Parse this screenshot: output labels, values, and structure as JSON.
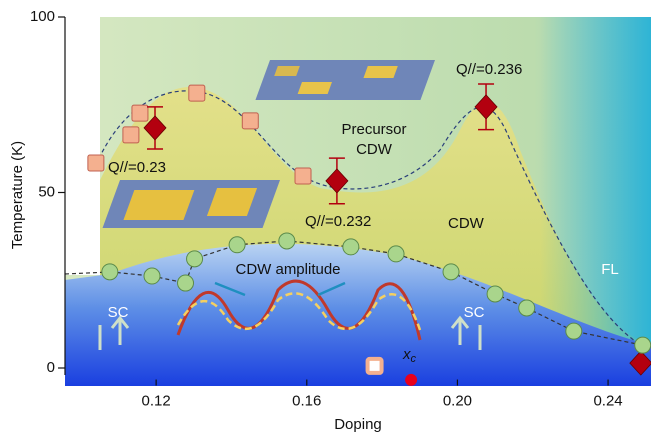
{
  "chart_data": {
    "type": "scatter",
    "x_label": "Doping",
    "y_label": "Temperature (K)",
    "xlim": [
      0.0958,
      0.2514
    ],
    "ylim": [
      -5,
      100
    ],
    "xticks": [
      0.12,
      0.16,
      {
        "value": 0.2,
        "label": "0.20"
      },
      0.24
    ],
    "yticks": [
      0,
      50,
      100
    ],
    "series": [
      {
        "marker": "square",
        "color": "#f4b08f",
        "x": [
          0.104,
          0.1133,
          0.1157,
          0.1308,
          0.145,
          0.159
        ],
        "values": [
          58.4,
          66.4,
          72.6,
          78.3,
          70.4,
          54.7
        ]
      },
      {
        "marker": "diamond",
        "color": "#b3000f",
        "x": [
          0.1197,
          0.168,
          0.2076,
          0.2487
        ],
        "values": [
          68.4,
          53.3,
          74.4,
          1.4
        ],
        "errors": [
          6,
          6.5,
          6.5,
          null
        ]
      },
      {
        "marker": "circle",
        "color": "#a9d58c",
        "x": [
          0.1077,
          0.1189,
          0.1278,
          0.1302,
          0.1415,
          0.1547,
          0.1717,
          0.1837,
          0.1983,
          0.21,
          0.2184,
          0.2309,
          0.2492
        ],
        "values": [
          27.4,
          26.2,
          24.2,
          31.1,
          35.1,
          36.2,
          34.5,
          32.5,
          27.4,
          21.1,
          17.1,
          10.5,
          6.5
        ]
      },
      {
        "marker": "open-square",
        "color": "#f4b08f",
        "x": [
          0.178
        ],
        "values": [
          0.6
        ]
      },
      {
        "marker": "dot",
        "color": "#e8001c",
        "x": [
          0.1877
        ],
        "values": [
          -3.4
        ]
      }
    ],
    "xc_label": "x",
    "xc_sub": "c",
    "annotations": [
      "Q//=0.23",
      "Q//=0.232",
      "Q//=0.236",
      "Precursor",
      "CDW",
      "CDW",
      "CDW amplitude",
      "SC",
      "SC",
      "FL"
    ]
  }
}
